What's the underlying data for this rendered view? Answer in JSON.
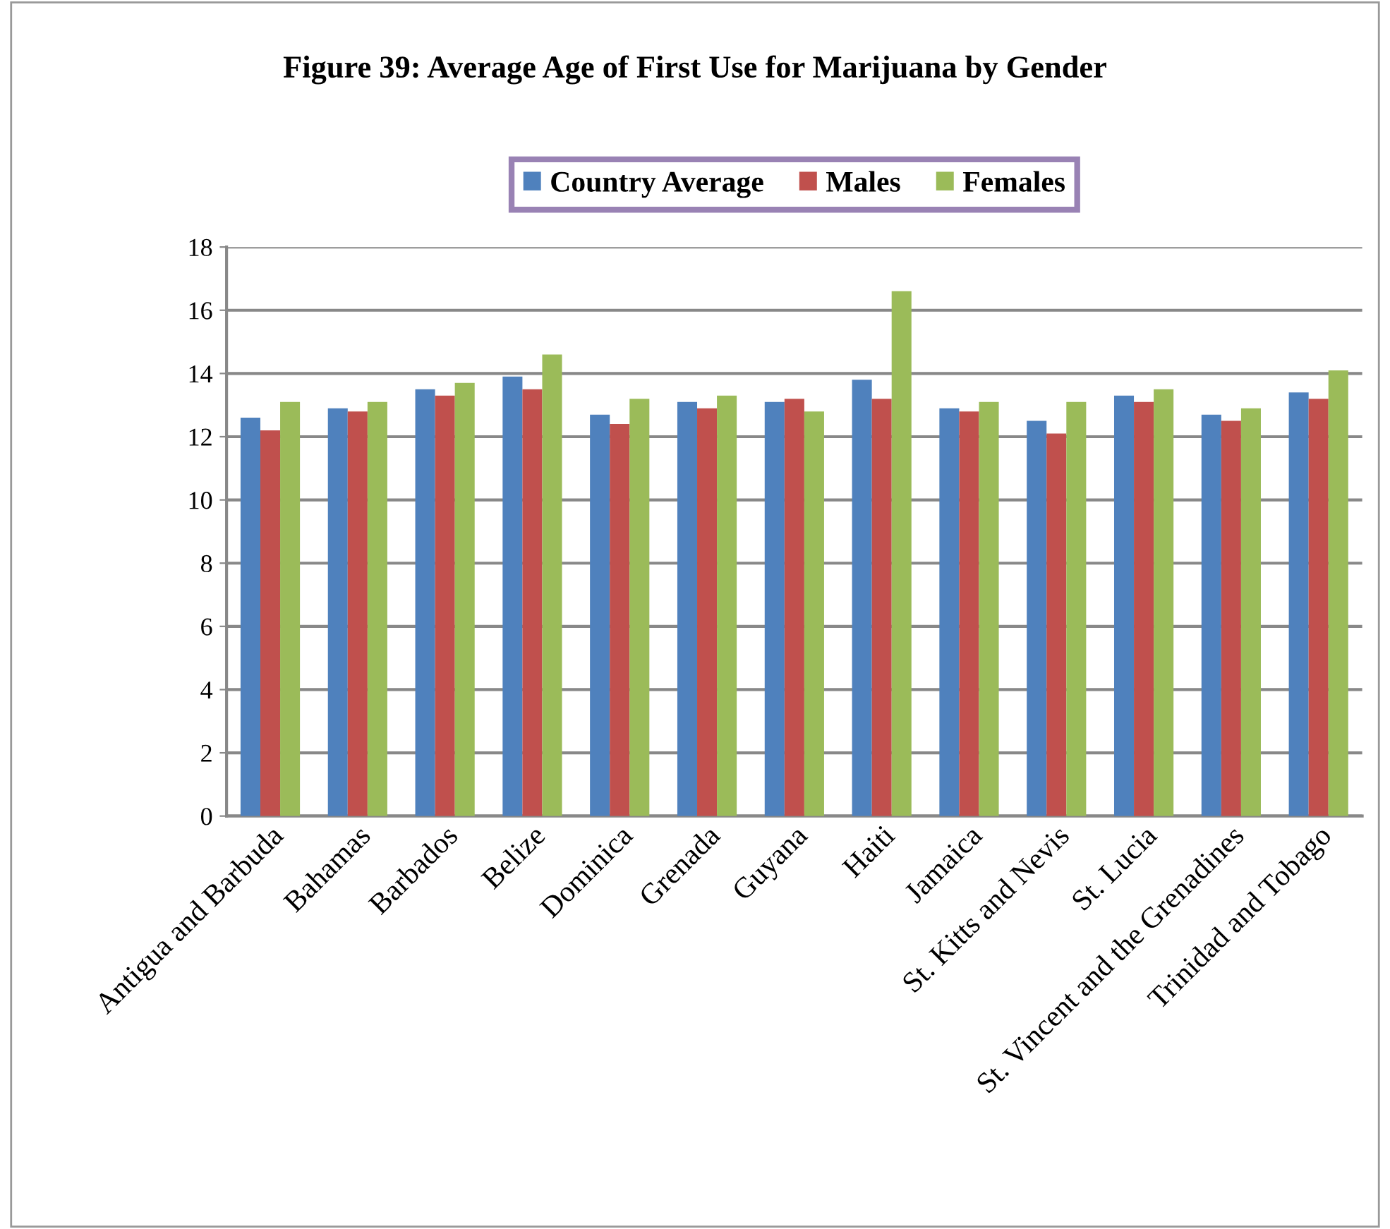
{
  "chart_data": {
    "type": "bar",
    "title": "Figure 39: Average Age of First Use for Marijuana by Gender",
    "categories": [
      "Antigua and Barbuda",
      "Bahamas",
      "Barbados",
      "Belize",
      "Dominica",
      "Grenada",
      "Guyana",
      "Haiti",
      "Jamaica",
      "St. Kitts and Nevis",
      "St. Lucia",
      "St. Vincent and the Grenadines",
      "Trinidad and Tobago"
    ],
    "series": [
      {
        "name": "Country Average",
        "color": "#4f81bd",
        "values": [
          12.6,
          12.9,
          13.5,
          13.9,
          12.7,
          13.1,
          13.1,
          13.8,
          12.9,
          12.5,
          13.3,
          12.7,
          13.4
        ]
      },
      {
        "name": "Males",
        "color": "#c0504d",
        "values": [
          12.2,
          12.8,
          13.3,
          13.5,
          12.4,
          12.9,
          13.2,
          13.2,
          12.8,
          12.1,
          13.1,
          12.5,
          13.2
        ]
      },
      {
        "name": "Females",
        "color": "#9bbb59",
        "values": [
          13.1,
          13.1,
          13.7,
          14.6,
          13.2,
          13.3,
          12.8,
          16.6,
          13.1,
          13.1,
          13.5,
          12.9,
          14.1
        ]
      }
    ],
    "ylim": [
      0,
      18
    ],
    "yticks": [
      0,
      2,
      4,
      6,
      8,
      10,
      12,
      14,
      16,
      18
    ],
    "grid": "y",
    "legend": "top"
  }
}
